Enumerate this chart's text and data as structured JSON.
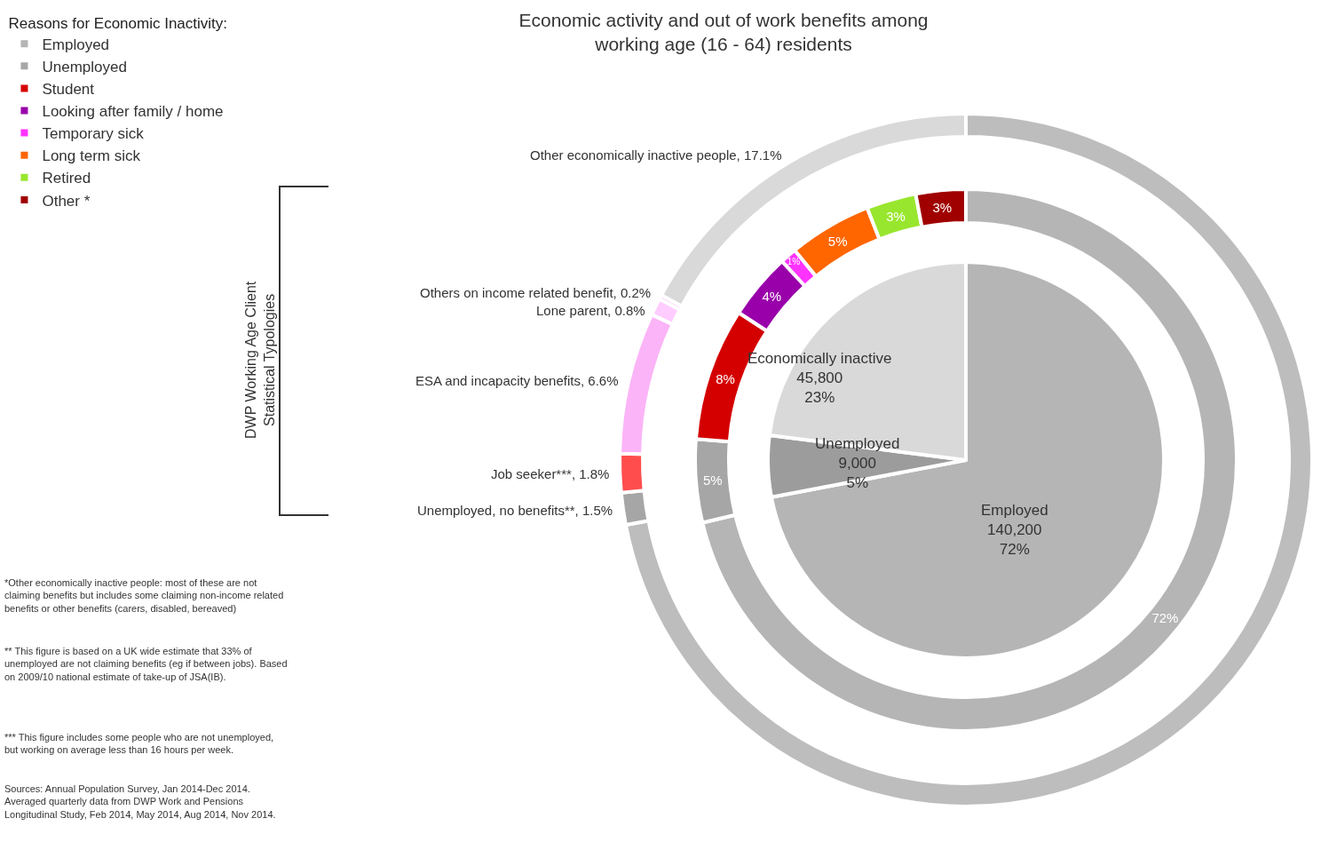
{
  "chart_data": {
    "type": "pie",
    "title": "Economic activity and out of work benefits among\nworking age (16 - 64) residents",
    "legend_title": "Reasons for Economic Inactivity:",
    "legend": "top left",
    "categories": [
      "Employed",
      "Unemployed",
      "Unemployed, no benefits**",
      "Job seeker***",
      "Economically inactive",
      "Student",
      "Looking after family / home",
      "Temporary sick",
      "Long term sick",
      "Retired",
      "Other *",
      "ESA and incapacity benefits",
      "Lone parent",
      "Others on income related benefit",
      "Other economically inactive people"
    ],
    "annotations": [
      "DWP Working Age Client\nStatistical Typologies",
      "*Other economically inactive people: most of these are not\nclaiming benefits but includes some claiming non-income related\nbenefits or other benefits (carers, disabled, bereaved)",
      "** This figure is based on a UK wide estimate that 33% of\nunemployed are not claiming benefits (eg if between jobs). Based\non 2009/10 national estimate of take-up of JSA(IB).",
      "*** This figure includes some people who are not unemployed,\nbut working on average less than 16 hours per week.",
      "Sources: Annual Population Survey, Jan 2014-Dec 2014.\nAveraged quarterly data from DWP Work and Pensions\nLongitudinal Study, Feb 2014, May 2014, Aug 2014, Nov 2014."
    ],
    "series": [
      {
        "values": [
          72,
          5,
          null,
          null,
          23,
          null,
          null,
          null,
          null,
          null,
          null,
          null,
          null,
          null,
          null
        ],
        "value_labels": [
          "140,200\n72%",
          "9,000\n5%",
          null,
          null,
          "45,800\n23%",
          null,
          null,
          null,
          null,
          null,
          null,
          null,
          null,
          null,
          null
        ],
        "colors": [
          "#b5b5b5",
          "#9c9c9c",
          null,
          null,
          "#d9d9d9",
          null,
          null,
          null,
          null,
          null,
          null,
          null,
          null,
          null,
          null
        ]
      },
      {
        "values": [
          72,
          5,
          null,
          null,
          null,
          8,
          4,
          1,
          5,
          3,
          3,
          null,
          null,
          null,
          null
        ],
        "value_labels": [
          "72%",
          "5%",
          null,
          null,
          null,
          "8%",
          "4%",
          "1%",
          "5%",
          "3%",
          "3%",
          null,
          null,
          null,
          null
        ],
        "colors": [
          "#b5b5b5",
          "#a6a6a6",
          null,
          null,
          null,
          "#d40000",
          "#9900aa",
          "#ff33ff",
          "#ff6600",
          "#99e62e",
          "#a00000",
          null,
          null,
          null,
          null
        ]
      },
      {
        "values": [
          72,
          null,
          1.5,
          1.8,
          null,
          null,
          null,
          null,
          null,
          null,
          null,
          6.6,
          0.8,
          0.2,
          17.1
        ],
        "value_labels": [
          null,
          null,
          ", 1.5%",
          ", 1.8%",
          null,
          null,
          null,
          null,
          null,
          null,
          null,
          ", 6.6%",
          ", 0.8%",
          ", 0.2%",
          ", 17.1%"
        ],
        "colors": [
          "#bdbdbd",
          null,
          "#a6a6a6",
          "#ff4d4d",
          null,
          null,
          null,
          null,
          null,
          null,
          null,
          "#fbb4f7",
          "#ffccff",
          "#f3c6f3",
          "#d9d9d9"
        ]
      }
    ]
  }
}
